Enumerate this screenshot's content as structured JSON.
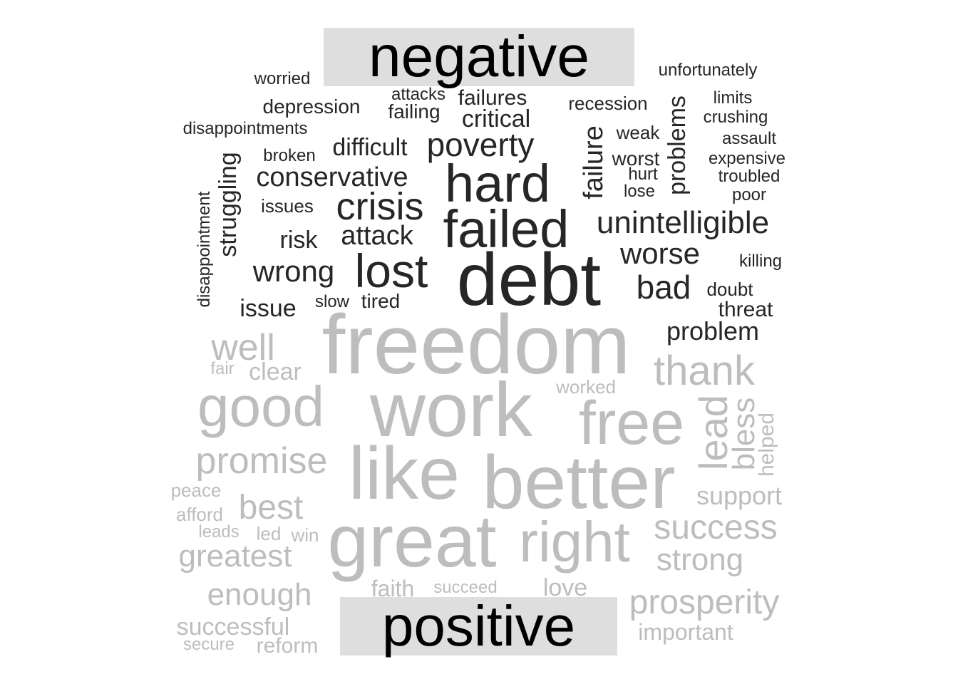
{
  "colors": {
    "negative": "#262626",
    "positive": "#bdbdbd",
    "label_bg": "#dedede",
    "label_text": "#000000"
  },
  "labels": {
    "negative": "negative",
    "positive": "positive"
  },
  "words": [
    {
      "text": "debt",
      "group": "negative"
    },
    {
      "text": "failed",
      "group": "negative"
    },
    {
      "text": "hard",
      "group": "negative"
    },
    {
      "text": "lost",
      "group": "negative"
    },
    {
      "text": "crisis",
      "group": "negative"
    },
    {
      "text": "poverty",
      "group": "negative"
    },
    {
      "text": "unintelligible",
      "group": "negative"
    },
    {
      "text": "wrong",
      "group": "negative"
    },
    {
      "text": "bad",
      "group": "negative"
    },
    {
      "text": "conservative",
      "group": "negative"
    },
    {
      "text": "worse",
      "group": "negative"
    },
    {
      "text": "attack",
      "group": "negative"
    },
    {
      "text": "failure",
      "group": "negative"
    },
    {
      "text": "problem",
      "group": "negative"
    },
    {
      "text": "difficult",
      "group": "negative"
    },
    {
      "text": "critical",
      "group": "negative"
    },
    {
      "text": "struggling",
      "group": "negative"
    },
    {
      "text": "risk",
      "group": "negative"
    },
    {
      "text": "problems",
      "group": "negative"
    },
    {
      "text": "issue",
      "group": "negative"
    },
    {
      "text": "failures",
      "group": "negative"
    },
    {
      "text": "threat",
      "group": "negative"
    },
    {
      "text": "depression",
      "group": "negative"
    },
    {
      "text": "tired",
      "group": "negative"
    },
    {
      "text": "worst",
      "group": "negative"
    },
    {
      "text": "failing",
      "group": "negative"
    },
    {
      "text": "recession",
      "group": "negative"
    },
    {
      "text": "issues",
      "group": "negative"
    },
    {
      "text": "weak",
      "group": "negative"
    },
    {
      "text": "doubt",
      "group": "negative"
    },
    {
      "text": "disappointments",
      "group": "negative"
    },
    {
      "text": "unfortunately",
      "group": "negative"
    },
    {
      "text": "disappointment",
      "group": "negative"
    },
    {
      "text": "expensive",
      "group": "negative"
    },
    {
      "text": "worried",
      "group": "negative"
    },
    {
      "text": "broken",
      "group": "negative"
    },
    {
      "text": "slow",
      "group": "negative"
    },
    {
      "text": "killing",
      "group": "negative"
    },
    {
      "text": "crushing",
      "group": "negative"
    },
    {
      "text": "limits",
      "group": "negative"
    },
    {
      "text": "assault",
      "group": "negative"
    },
    {
      "text": "troubled",
      "group": "negative"
    },
    {
      "text": "poor",
      "group": "negative"
    },
    {
      "text": "lose",
      "group": "negative"
    },
    {
      "text": "hurt",
      "group": "negative"
    },
    {
      "text": "attacks",
      "group": "negative"
    },
    {
      "text": "freedom",
      "group": "positive"
    },
    {
      "text": "work",
      "group": "positive"
    },
    {
      "text": "like",
      "group": "positive"
    },
    {
      "text": "better",
      "group": "positive"
    },
    {
      "text": "great",
      "group": "positive"
    },
    {
      "text": "right",
      "group": "positive"
    },
    {
      "text": "free",
      "group": "positive"
    },
    {
      "text": "good",
      "group": "positive"
    },
    {
      "text": "thank",
      "group": "positive"
    },
    {
      "text": "promise",
      "group": "positive"
    },
    {
      "text": "lead",
      "group": "positive"
    },
    {
      "text": "well",
      "group": "positive"
    },
    {
      "text": "best",
      "group": "positive"
    },
    {
      "text": "success",
      "group": "positive"
    },
    {
      "text": "prosperity",
      "group": "positive"
    },
    {
      "text": "bless",
      "group": "positive"
    },
    {
      "text": "greatest",
      "group": "positive"
    },
    {
      "text": "strong",
      "group": "positive"
    },
    {
      "text": "enough",
      "group": "positive"
    },
    {
      "text": "support",
      "group": "positive"
    },
    {
      "text": "clear",
      "group": "positive"
    },
    {
      "text": "successful",
      "group": "positive"
    },
    {
      "text": "love",
      "group": "positive"
    },
    {
      "text": "helped",
      "group": "positive"
    },
    {
      "text": "faith",
      "group": "positive"
    },
    {
      "text": "important",
      "group": "positive"
    },
    {
      "text": "reform",
      "group": "positive"
    },
    {
      "text": "worked",
      "group": "positive"
    },
    {
      "text": "peace",
      "group": "positive"
    },
    {
      "text": "afford",
      "group": "positive"
    },
    {
      "text": "succeed",
      "group": "positive"
    },
    {
      "text": "led",
      "group": "positive"
    },
    {
      "text": "win",
      "group": "positive"
    },
    {
      "text": "leads",
      "group": "positive"
    },
    {
      "text": "fair",
      "group": "positive"
    },
    {
      "text": "secure",
      "group": "positive"
    }
  ]
}
